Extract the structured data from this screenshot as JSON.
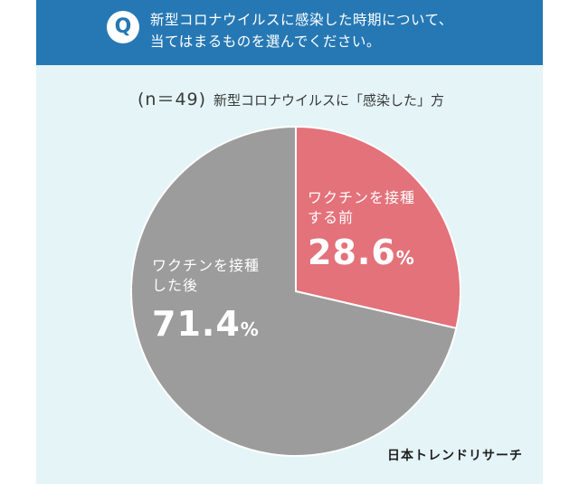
{
  "question": {
    "badge": "Q",
    "text": "新型コロナウイルスに感染した時期について、\n当てはまるものを選んでください。"
  },
  "subtitle": {
    "n": "(n＝49)",
    "label": "新型コロナウイルスに「感染した」方"
  },
  "colors": {
    "header": "#2678b4",
    "background": "#e4f4f7",
    "before": "#e3727a",
    "after": "#9c9c9c"
  },
  "chart_data": {
    "type": "pie",
    "slices": [
      {
        "label": "ワクチンを接種\nする前",
        "value": 28.6,
        "display": "28.6",
        "unit": "%"
      },
      {
        "label": "ワクチンを接種\nした後",
        "value": 71.4,
        "display": "71.4",
        "unit": "%"
      }
    ]
  },
  "brand": "日本トレンドリサーチ"
}
